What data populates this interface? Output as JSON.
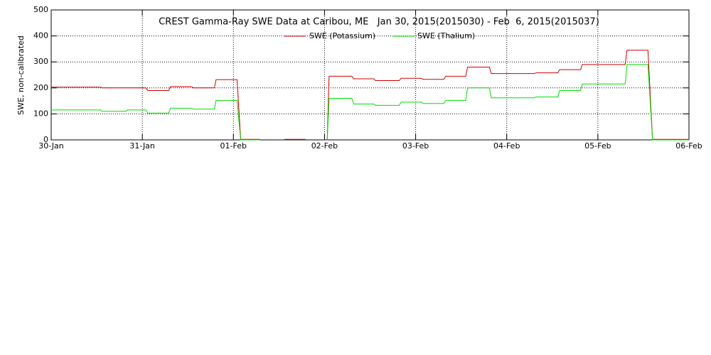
{
  "chart_data": {
    "type": "line",
    "title": "CREST Gamma-Ray SWE Data at Caribou, ME   Jan 30, 2015(2015030) - Feb  6, 2015(2015037)",
    "y_label": "SWE, non-calibrated",
    "x": [
      0,
      0.54,
      0.56,
      0.82,
      0.84,
      1.04,
      1.06,
      1.29,
      1.31,
      1.54,
      1.56,
      1.79,
      1.81,
      2.04,
      2.08,
      2.29,
      2.42,
      2.56,
      2.79,
      2.9,
      3.03,
      3.05,
      3.3,
      3.32,
      3.54,
      3.56,
      3.82,
      3.84,
      4.06,
      4.08,
      4.31,
      4.33,
      4.55,
      4.57,
      4.81,
      4.83,
      5.3,
      5.32,
      5.56,
      5.58,
      5.81,
      5.83,
      6.3,
      6.32,
      6.55,
      6.6,
      7.0
    ],
    "series": [
      {
        "name": "SWE (Potassium)",
        "color": "#cc0000",
        "values": [
          203,
          203,
          200,
          200,
          200,
          200,
          190,
          190,
          205,
          205,
          200,
          200,
          232,
          232,
          2,
          2,
          null,
          2,
          2,
          null,
          2,
          245,
          245,
          235,
          235,
          228,
          228,
          237,
          237,
          233,
          233,
          245,
          245,
          280,
          280,
          255,
          255,
          258,
          258,
          270,
          270,
          290,
          290,
          345,
          345,
          2,
          2
        ]
      },
      {
        "name": "SWE (Thalium)",
        "color": "#00dd00",
        "values": [
          115,
          115,
          110,
          110,
          115,
          115,
          103,
          103,
          122,
          122,
          118,
          118,
          152,
          152,
          0,
          0,
          null,
          null,
          null,
          null,
          0,
          160,
          160,
          138,
          138,
          133,
          133,
          145,
          145,
          140,
          140,
          152,
          152,
          200,
          200,
          162,
          162,
          165,
          165,
          190,
          190,
          215,
          215,
          290,
          290,
          0,
          0
        ]
      }
    ],
    "xlim": [
      0,
      7
    ],
    "xticks": [
      {
        "value": 0,
        "label": "30-Jan"
      },
      {
        "value": 1,
        "label": "31-Jan"
      },
      {
        "value": 2,
        "label": "01-Feb"
      },
      {
        "value": 3,
        "label": "02-Feb"
      },
      {
        "value": 4,
        "label": "03-Feb"
      },
      {
        "value": 5,
        "label": "04-Feb"
      },
      {
        "value": 6,
        "label": "05-Feb"
      },
      {
        "value": 7,
        "label": "06-Feb"
      }
    ],
    "ylim": [
      0,
      500
    ],
    "yticks": [
      0,
      100,
      200,
      300,
      400,
      500
    ],
    "grid": true
  }
}
